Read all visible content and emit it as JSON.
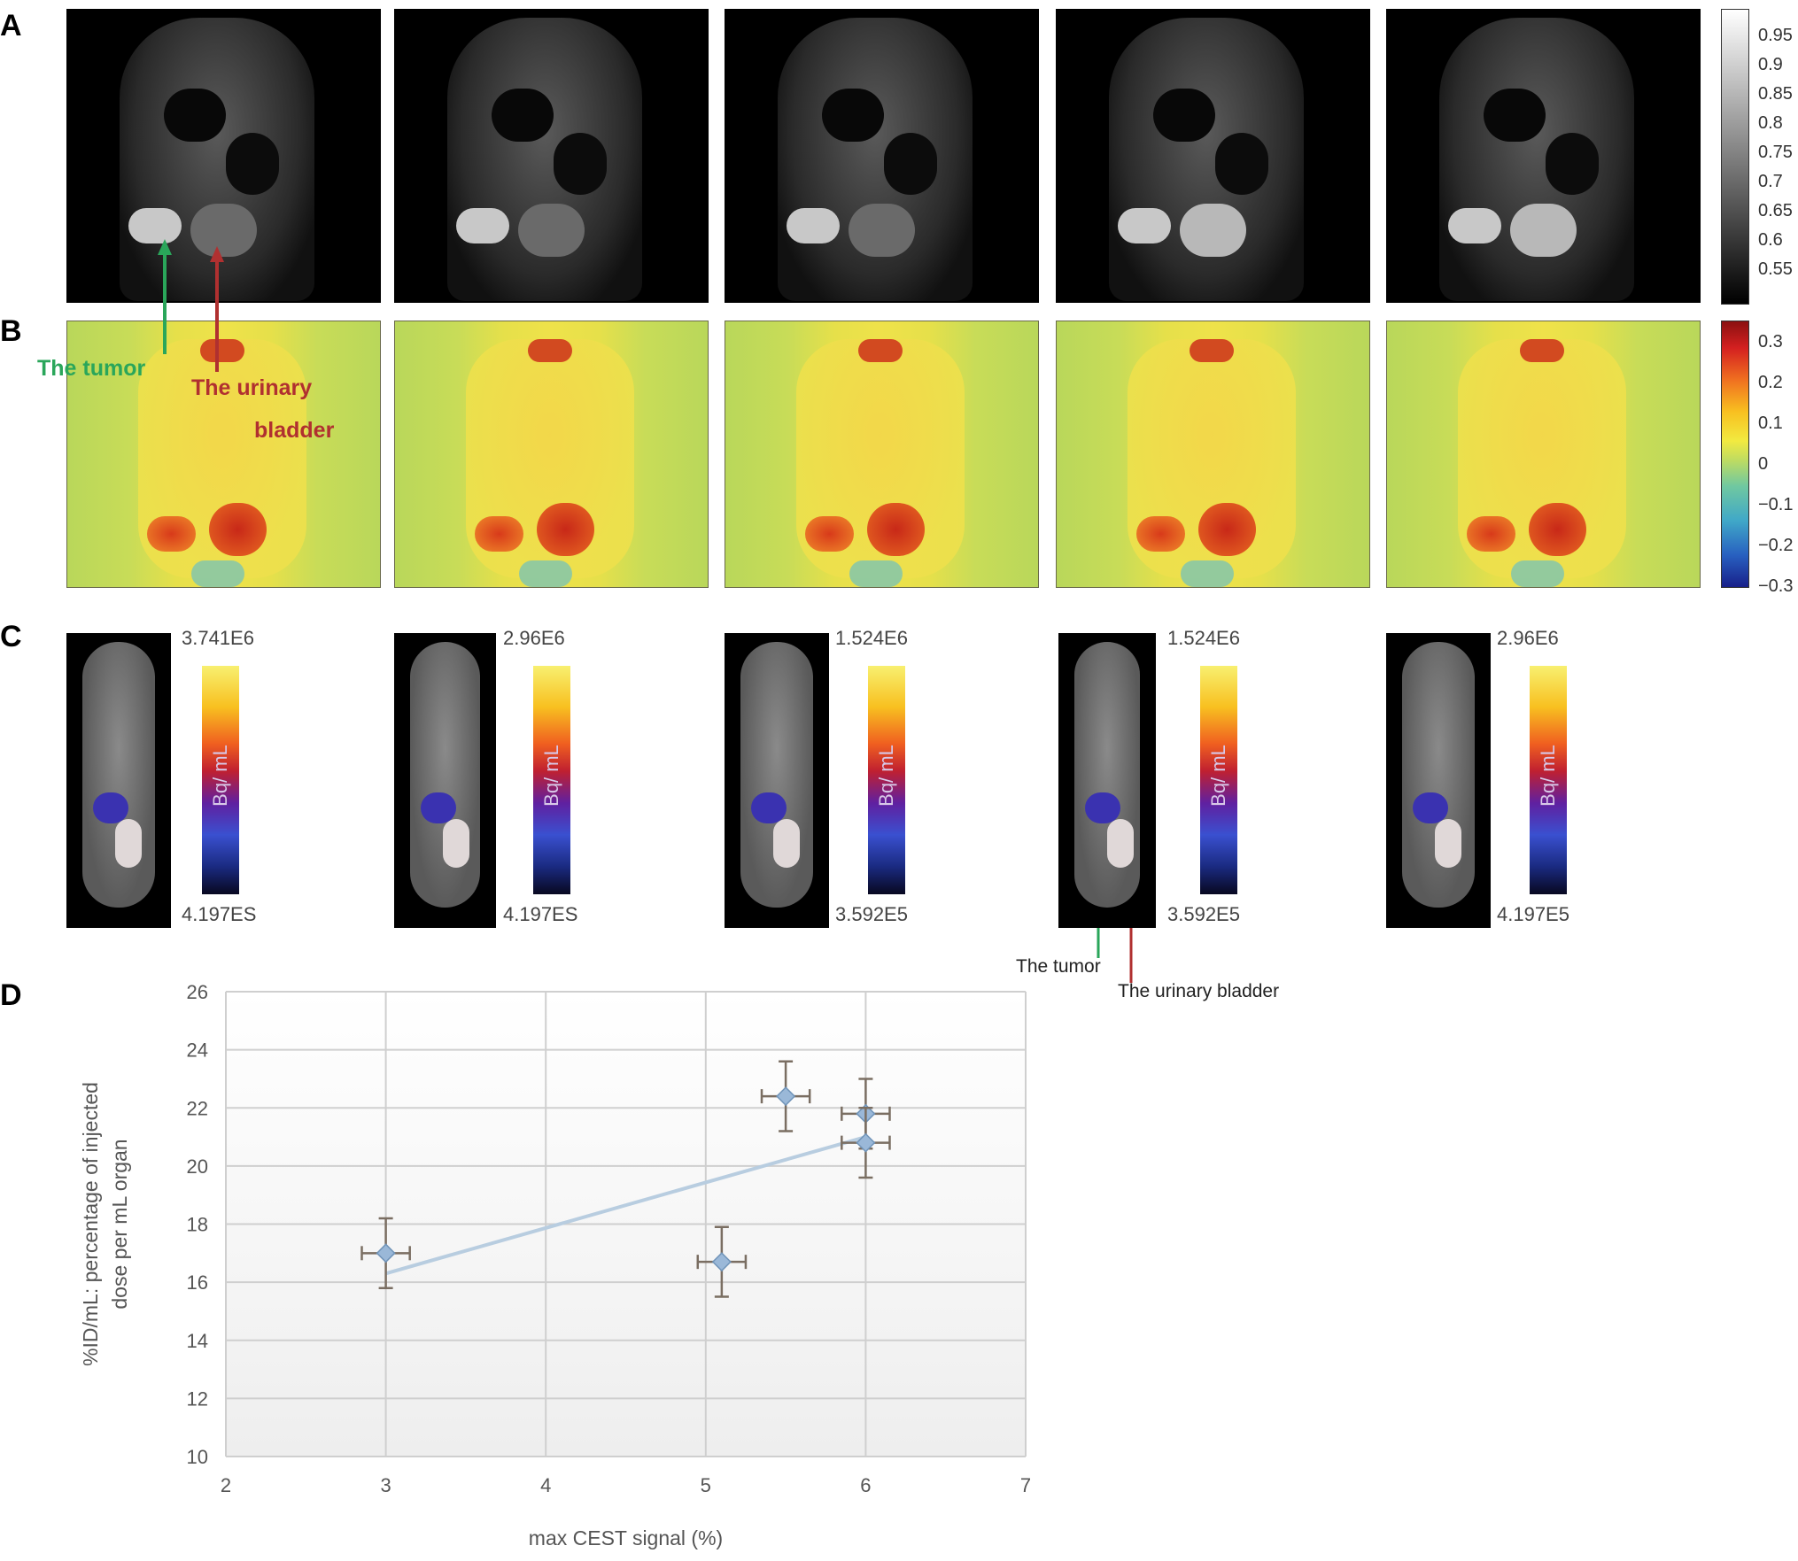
{
  "panels": {
    "a": "A",
    "b": "B",
    "c": "C",
    "d": "D"
  },
  "colorbar_a": {
    "ticks": [
      "0.95",
      "0.9",
      "0.85",
      "0.8",
      "0.75",
      "0.7",
      "0.65",
      "0.6",
      "0.55"
    ]
  },
  "colorbar_b": {
    "ticks": [
      "0.3",
      "0.2",
      "0.1",
      "0",
      "−0.1",
      "−0.2",
      "−0.3"
    ]
  },
  "annotations_b": {
    "tumor": "The tumor",
    "bladder_line1": "The urinary",
    "bladder_line2": "bladder",
    "tumor_color": "#2aa65a",
    "bladder_color": "#b03030"
  },
  "annotations_c": {
    "tumor": "The tumor",
    "bladder": "The urinary bladder"
  },
  "pet": [
    {
      "max": "3.741E6",
      "min": "4.197ES",
      "unit": "Bq/ mL"
    },
    {
      "max": "2.96E6",
      "min": "4.197ES",
      "unit": "Bq/ mL"
    },
    {
      "max": "1.524E6",
      "min": "3.592E5",
      "unit": "Bq/ mL"
    },
    {
      "max": "1.524E6",
      "min": "3.592E5",
      "unit": "Bq/ mL"
    },
    {
      "max": "2.96E6",
      "min": "4.197E5",
      "unit": "Bq/ mL"
    }
  ],
  "chart_data": {
    "type": "scatter",
    "xlabel": "max CEST signal (%)",
    "ylabel_line1": "%ID/mL: percentage of injected",
    "ylabel_line2": "dose per mL organ",
    "xlim": [
      2,
      7
    ],
    "ylim": [
      10,
      26
    ],
    "x_ticks": [
      "2",
      "3",
      "4",
      "5",
      "6",
      "7"
    ],
    "y_ticks": [
      "10",
      "12",
      "14",
      "16",
      "18",
      "20",
      "22",
      "24",
      "26"
    ],
    "grid": true,
    "points": [
      {
        "x": 3.0,
        "y": 17.0,
        "xerr": 0.15,
        "yerr": 1.2
      },
      {
        "x": 5.1,
        "y": 16.7,
        "xerr": 0.15,
        "yerr": 1.2
      },
      {
        "x": 5.5,
        "y": 22.4,
        "xerr": 0.15,
        "yerr": 1.2
      },
      {
        "x": 6.0,
        "y": 21.8,
        "xerr": 0.15,
        "yerr": 1.2
      },
      {
        "x": 6.0,
        "y": 20.8,
        "xerr": 0.15,
        "yerr": 1.2
      }
    ],
    "trendline": [
      [
        3.0,
        16.3
      ],
      [
        6.0,
        21.0
      ]
    ],
    "marker_color": "#9ab8d8",
    "errorbar_color": "#7a6e62"
  }
}
